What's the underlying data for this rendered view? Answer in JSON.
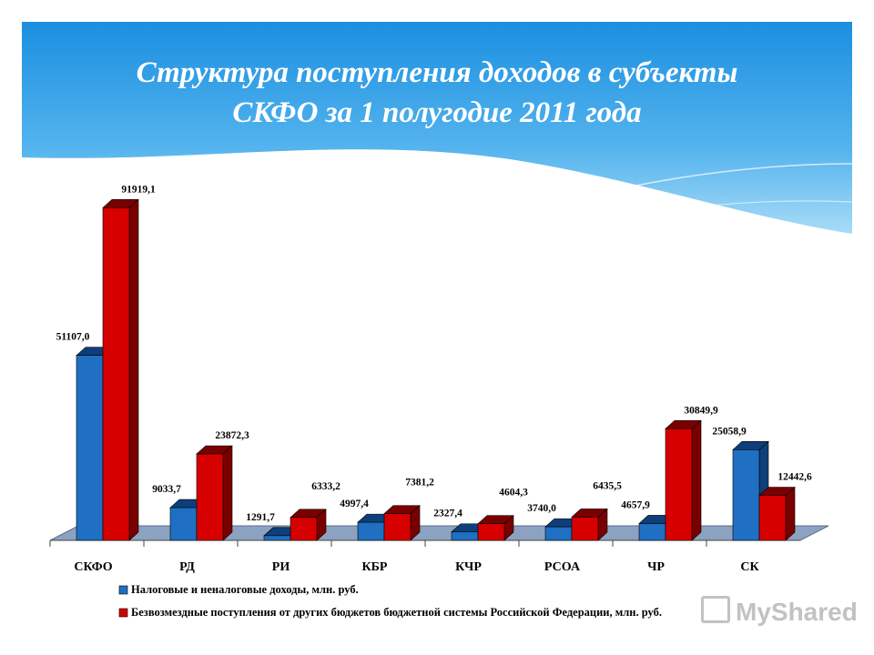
{
  "slide": {
    "title_line1": "Структура поступления доходов в субъекты",
    "title_line2": "СКФО за 1 полугодие 2011 года",
    "watermark": "MyShared"
  },
  "colors": {
    "header_top": "#1b8fe0",
    "header_bottom": "#9fd8f6",
    "series1": "#1f6fc2",
    "series1_dark": "#0e3f7a",
    "series2": "#d60000",
    "series2_dark": "#7a0000",
    "floor": "#8da2c0"
  },
  "chart_data": {
    "type": "bar",
    "categories": [
      "СКФО",
      "РД",
      "РИ",
      "КБР",
      "КЧР",
      "РСОА",
      "ЧР",
      "СК"
    ],
    "series": [
      {
        "name": "Налоговые и неналоговые доходы, млн. руб.",
        "values": [
          51107.0,
          9033.7,
          1291.7,
          4997.4,
          2327.4,
          3740.0,
          4657.9,
          25058.9
        ],
        "labels": [
          "51107,0",
          "9033,7",
          "1291,7",
          "4997,4",
          "2327,4",
          "3740,0",
          "4657,9",
          "25058,9"
        ]
      },
      {
        "name": "Безвозмездные поступления от других бюджетов бюджетной системы Российской Федерации, млн. руб.",
        "values": [
          91919.1,
          23872.3,
          6333.2,
          7381.2,
          4604.3,
          6435.5,
          30849.9,
          12442.6
        ],
        "labels": [
          "91919,1",
          "23872,3",
          "6333,2",
          "7381,2",
          "4604,3",
          "6435,5",
          "30849,9",
          "12442,6"
        ]
      }
    ],
    "ylim": [
      0,
      92000
    ],
    "legend_position": "bottom",
    "grid": false,
    "style": "3d"
  }
}
